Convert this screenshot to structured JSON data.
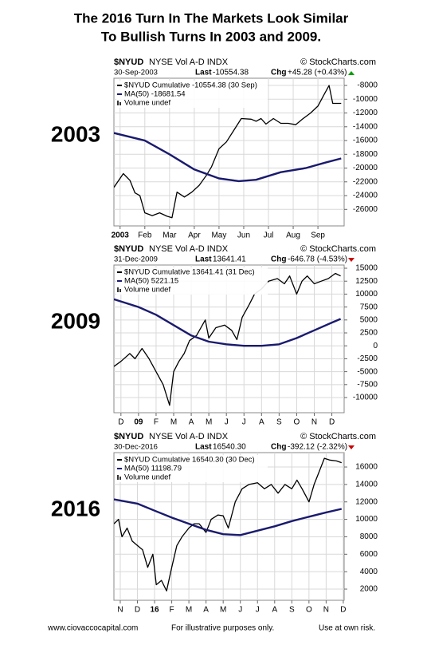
{
  "title_lines": [
    "The 2016 Turn In The Markets Look Similar",
    "To Bullish Turns In 2003 and 2009."
  ],
  "footer": {
    "site": "www.ciovaccocapital.com",
    "note": "For illustrative purposes only.",
    "risk": "Use at own risk."
  },
  "chart_data": [
    {
      "type": "line",
      "year_label": "2003",
      "symbol": "$NYUD",
      "exchange": "NYSE Vol A-D INDX",
      "source": "© StockCharts.com",
      "date": "30-Sep-2003",
      "last_label": "Last",
      "last": "-10554.38",
      "chg_label": "Chg",
      "chg": "+45.28 (+0.43%)",
      "chg_color": "#00a000",
      "volume_label": "Volume undef",
      "grid": true,
      "xlim": [
        -0.25,
        9.06
      ],
      "xticks": [
        {
          "value": 0,
          "label": "2003"
        },
        {
          "value": 1,
          "label": "Feb"
        },
        {
          "value": 2,
          "label": "Mar"
        },
        {
          "value": 3,
          "label": "Apr"
        },
        {
          "value": 4,
          "label": "May"
        },
        {
          "value": 5,
          "label": "Jun"
        },
        {
          "value": 6,
          "label": "Jul"
        },
        {
          "value": 7,
          "label": "Aug"
        },
        {
          "value": 8,
          "label": "Sep"
        }
      ],
      "ylim": [
        -28400,
        -6950
      ],
      "yticks": [
        -8000,
        -10000,
        -12000,
        -14000,
        -16000,
        -18000,
        -20000,
        -22000,
        -24000,
        -26000
      ],
      "series": [
        {
          "name": "$NYUD Cumulative -10554.38 (30 Sep)",
          "color": "#000000",
          "width": 1.3,
          "x": [
            -0.25,
            0.13,
            0.4,
            0.6,
            0.8,
            1.0,
            1.3,
            1.6,
            1.9,
            2.1,
            2.3,
            2.6,
            2.9,
            3.2,
            3.5,
            3.7,
            4.0,
            4.3,
            4.6,
            4.9,
            5.3,
            5.5,
            5.7,
            5.9,
            6.2,
            6.5,
            6.8,
            7.1,
            7.4,
            7.7,
            8.0,
            8.25,
            8.45,
            8.6,
            8.94
          ],
          "values": [
            -22800,
            -20800,
            -21800,
            -23600,
            -24000,
            -26500,
            -26900,
            -26500,
            -27000,
            -27200,
            -23500,
            -24200,
            -23500,
            -22500,
            -21000,
            -19800,
            -17200,
            -16200,
            -14500,
            -12800,
            -12900,
            -13200,
            -12800,
            -13600,
            -12800,
            -13500,
            -13500,
            -13700,
            -12800,
            -12000,
            -11000,
            -9300,
            -8000,
            -10600,
            -10600
          ]
        },
        {
          "name": "MA(50) -18681.54",
          "color": "#1a1a6e",
          "width": 2.4,
          "x": [
            -0.25,
            1,
            2,
            3,
            4,
            4.8,
            5.5,
            6.5,
            7.5,
            8.3,
            8.94
          ],
          "values": [
            -14900,
            -16000,
            -18000,
            -20200,
            -21500,
            -21900,
            -21700,
            -20600,
            -20000,
            -19200,
            -18600
          ]
        }
      ]
    },
    {
      "type": "line",
      "year_label": "2009",
      "symbol": "$NYUD",
      "exchange": "NYSE Vol A-D INDX",
      "source": "© StockCharts.com",
      "date": "31-Dec-2009",
      "last_label": "Last",
      "last": "13641.41",
      "chg_label": "Chg",
      "chg": "-646.78 (-4.53%)",
      "chg_color": "#cc0000",
      "volume_label": "Volume undef",
      "grid": true,
      "xlim": [
        -0.4,
        12.7
      ],
      "xticks": [
        {
          "value": 0,
          "label": "D"
        },
        {
          "value": 1,
          "label": "09"
        },
        {
          "value": 2,
          "label": "F"
        },
        {
          "value": 3,
          "label": "M"
        },
        {
          "value": 4,
          "label": "A"
        },
        {
          "value": 5,
          "label": "M"
        },
        {
          "value": 6,
          "label": "J"
        },
        {
          "value": 7,
          "label": "J"
        },
        {
          "value": 8,
          "label": "A"
        },
        {
          "value": 9,
          "label": "S"
        },
        {
          "value": 10,
          "label": "O"
        },
        {
          "value": 11,
          "label": "N"
        },
        {
          "value": 12,
          "label": "D"
        }
      ],
      "ylim": [
        -12930,
        15620
      ],
      "yticks": [
        15000,
        12500,
        10000,
        7500,
        5000,
        2500,
        0,
        -2500,
        -5000,
        -7500,
        -10000
      ],
      "series": [
        {
          "name": "$NYUD Cumulative 13641.41 (31 Dec)",
          "color": "#000000",
          "width": 1.3,
          "x": [
            -0.4,
            0,
            0.5,
            0.8,
            1.2,
            1.6,
            2.0,
            2.4,
            2.77,
            3.0,
            3.3,
            3.6,
            3.9,
            4.3,
            4.8,
            5.0,
            5.4,
            5.9,
            6.3,
            6.6,
            6.9,
            7.3,
            7.6,
            8.0,
            8.4,
            8.9,
            9.3,
            9.6,
            10.0,
            10.3,
            10.6,
            11.0,
            11.4,
            11.8,
            12.2,
            12.5
          ],
          "values": [
            -4000,
            -3000,
            -1500,
            -2500,
            -500,
            -2500,
            -5000,
            -7500,
            -11500,
            -5000,
            -3000,
            -1500,
            1000,
            2000,
            5000,
            1500,
            3500,
            4000,
            3000,
            1200,
            5500,
            8000,
            10000,
            11000,
            12500,
            13000,
            12000,
            13500,
            10000,
            12500,
            13500,
            12000,
            12500,
            13000,
            14000,
            13500
          ]
        },
        {
          "name": "MA(50) 5221.15",
          "color": "#1a1a6e",
          "width": 2.4,
          "x": [
            -0.4,
            1,
            2,
            3,
            4,
            5,
            6,
            7,
            8,
            9,
            10,
            11,
            12,
            12.5
          ],
          "values": [
            9000,
            7500,
            6000,
            4000,
            2000,
            800,
            300,
            0,
            0,
            300,
            1500,
            3000,
            4500,
            5200
          ]
        }
      ]
    },
    {
      "type": "line",
      "year_label": "2016",
      "symbol": "$NYUD",
      "exchange": "NYSE Vol A-D INDX",
      "source": "© StockCharts.com",
      "date": "30-Dec-2016",
      "last_label": "Last",
      "last": "16540.30",
      "chg_label": "Chg",
      "chg": "-392.12 (-2.32%)",
      "chg_color": "#cc0000",
      "volume_label": "Volume undef",
      "grid": true,
      "xlim": [
        -0.37,
        13.05
      ],
      "xticks": [
        {
          "value": 0,
          "label": "N"
        },
        {
          "value": 1,
          "label": "D"
        },
        {
          "value": 2,
          "label": "16"
        },
        {
          "value": 3,
          "label": "F"
        },
        {
          "value": 4,
          "label": "M"
        },
        {
          "value": 5,
          "label": "A"
        },
        {
          "value": 6,
          "label": "M"
        },
        {
          "value": 7,
          "label": "J"
        },
        {
          "value": 8,
          "label": "J"
        },
        {
          "value": 9,
          "label": "A"
        },
        {
          "value": 10,
          "label": "S"
        },
        {
          "value": 11,
          "label": "O"
        },
        {
          "value": 12,
          "label": "N"
        },
        {
          "value": 13,
          "label": "D"
        }
      ],
      "ylim": [
        720,
        17650
      ],
      "yticks": [
        16000,
        14000,
        12000,
        10000,
        8000,
        6000,
        4000,
        2000
      ],
      "series": [
        {
          "name": "$NYUD Cumulative 16540.30 (30 Dec)",
          "color": "#000000",
          "width": 1.3,
          "x": [
            -0.37,
            -0.1,
            0.1,
            0.4,
            0.7,
            1.0,
            1.3,
            1.6,
            1.9,
            2.1,
            2.4,
            2.7,
            3.0,
            3.3,
            3.6,
            4.0,
            4.3,
            4.6,
            5.0,
            5.3,
            5.7,
            6.0,
            6.3,
            6.7,
            7.1,
            7.5,
            8.0,
            8.4,
            8.8,
            9.2,
            9.6,
            10.0,
            10.3,
            10.6,
            11.0,
            11.3,
            11.6,
            11.9,
            12.2,
            12.6,
            12.9
          ],
          "values": [
            9500,
            10000,
            8000,
            9000,
            7500,
            7000,
            6500,
            4500,
            6000,
            2500,
            3000,
            1800,
            4500,
            7000,
            8000,
            9000,
            9500,
            9500,
            8500,
            10000,
            10500,
            10400,
            9000,
            12000,
            13500,
            14000,
            14200,
            13500,
            14000,
            13000,
            14000,
            13500,
            14500,
            13500,
            12000,
            14000,
            15500,
            17000,
            16800,
            16700,
            16500
          ]
        },
        {
          "name": "MA(50) 11198.79",
          "color": "#1a1a6e",
          "width": 2.4,
          "x": [
            -0.37,
            1,
            2,
            3,
            4,
            5,
            6,
            7,
            8,
            9,
            10,
            11,
            12,
            12.9
          ],
          "values": [
            12300,
            11800,
            11000,
            10200,
            9500,
            8800,
            8300,
            8200,
            8700,
            9200,
            9800,
            10300,
            10800,
            11200
          ]
        }
      ]
    }
  ]
}
